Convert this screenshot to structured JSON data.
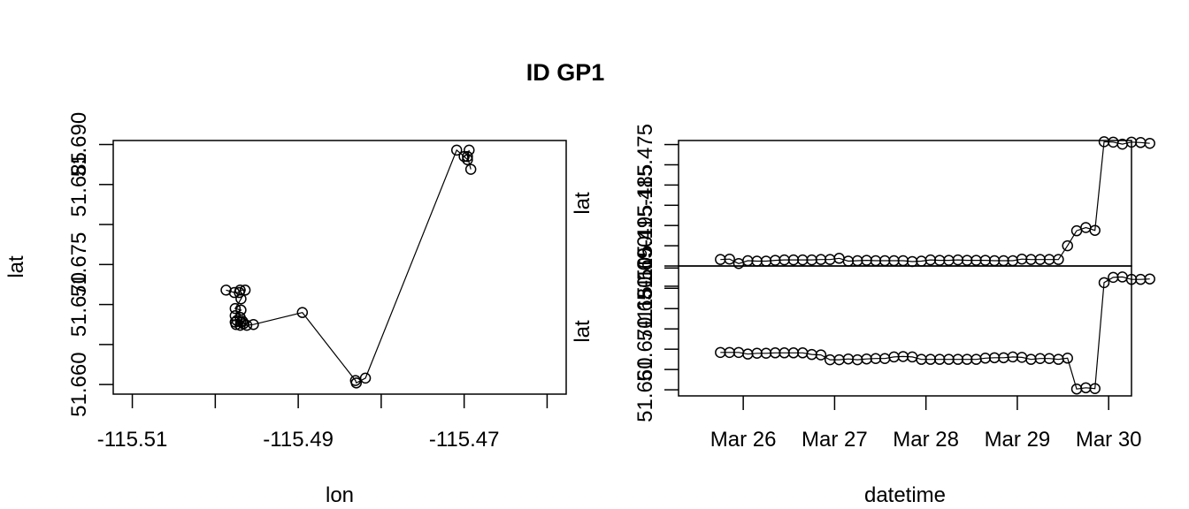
{
  "title": "ID GP1",
  "chart_data": [
    {
      "type": "line",
      "xlabel": "lon",
      "ylabel": "lat",
      "xlim": [
        -115.5123,
        -115.4577
      ],
      "ylim": [
        51.6588,
        51.6905
      ],
      "x_ticks": [
        {
          "value": -115.51,
          "label": "-115.51"
        },
        {
          "value": -115.5,
          "label": ""
        },
        {
          "value": -115.49,
          "label": "-115.49"
        },
        {
          "value": -115.48,
          "label": ""
        },
        {
          "value": -115.47,
          "label": "-115.47"
        },
        {
          "value": -115.46,
          "label": ""
        }
      ],
      "y_ticks": [
        {
          "value": 51.66,
          "label": "51.660"
        },
        {
          "value": 51.665,
          "label": ""
        },
        {
          "value": 51.67,
          "label": "51.670"
        },
        {
          "value": 51.675,
          "label": "51.675"
        },
        {
          "value": 51.68,
          "label": ""
        },
        {
          "value": 51.685,
          "label": "51.685"
        },
        {
          "value": 51.69,
          "label": "51.690"
        }
      ],
      "points": [
        [
          -115.4987,
          51.6718
        ],
        [
          -115.4977,
          51.6715
        ],
        [
          -115.4971,
          51.6715
        ],
        [
          -115.497,
          51.6718
        ],
        [
          -115.4964,
          51.6718
        ],
        [
          -115.4969,
          51.6707
        ],
        [
          -115.4976,
          51.6695
        ],
        [
          -115.4969,
          51.6693
        ],
        [
          -115.4976,
          51.6686
        ],
        [
          -115.497,
          51.6684
        ],
        [
          -115.4974,
          51.668
        ],
        [
          -115.4969,
          51.6678
        ],
        [
          -115.4975,
          51.6675
        ],
        [
          -115.4967,
          51.6679
        ],
        [
          -115.4976,
          51.6678
        ],
        [
          -115.4966,
          51.6676
        ],
        [
          -115.497,
          51.6674
        ],
        [
          -115.4962,
          51.6674
        ],
        [
          -115.4954,
          51.6675
        ],
        [
          -115.4895,
          51.669
        ],
        [
          -115.4831,
          51.6605
        ],
        [
          -115.483,
          51.6602
        ],
        [
          -115.4819,
          51.6608
        ],
        [
          -115.4709,
          51.6893
        ],
        [
          -115.47,
          51.6885
        ],
        [
          -115.4696,
          51.6881
        ],
        [
          -115.4694,
          51.6893
        ],
        [
          -115.4696,
          51.6885
        ],
        [
          -115.4692,
          51.6869
        ]
      ]
    },
    {
      "type": "line",
      "xlabel": "datetime",
      "panels": [
        {
          "ylabel": "lat",
          "ylim": [
            -115.5,
            -115.469
          ],
          "y_ticks": [
            {
              "value": -115.505,
              "label": "-115.505"
            },
            {
              "value": -115.5,
              "label": ""
            },
            {
              "value": -115.495,
              "label": "-115.495"
            },
            {
              "value": -115.49,
              "label": ""
            },
            {
              "value": -115.485,
              "label": "-115.485"
            },
            {
              "value": -115.48,
              "label": ""
            },
            {
              "value": -115.475,
              "label": "-115.475"
            },
            {
              "value": -115.47,
              "label": ""
            }
          ],
          "values": [
            -115.4984,
            -115.4983,
            -115.4994,
            -115.4987,
            -115.4988,
            -115.4988,
            -115.4986,
            -115.4985,
            -115.4985,
            -115.4985,
            -115.4985,
            -115.4984,
            -115.4984,
            -115.4981,
            -115.4988,
            -115.4987,
            -115.4986,
            -115.4987,
            -115.4987,
            -115.4987,
            -115.4987,
            -115.4989,
            -115.4988,
            -115.4985,
            -115.4986,
            -115.4986,
            -115.4985,
            -115.4986,
            -115.4986,
            -115.4986,
            -115.4987,
            -115.4987,
            -115.4987,
            -115.4983,
            -115.4984,
            -115.4984,
            -115.4984,
            -115.4984,
            -115.495,
            -115.4913,
            -115.4905,
            -115.4912,
            -115.4693,
            -115.4694,
            -115.4699,
            -115.4694,
            -115.4695,
            -115.4697
          ]
        },
        {
          "ylabel": "lat",
          "ylim": [
            51.6585,
            51.6905
          ],
          "y_ticks": [
            {
              "value": 51.66,
              "label": "51.660"
            },
            {
              "value": 51.665,
              "label": ""
            },
            {
              "value": 51.67,
              "label": "51.670"
            },
            {
              "value": 51.675,
              "label": ""
            },
            {
              "value": 51.68,
              "label": "51.680"
            },
            {
              "value": 51.685,
              "label": ""
            },
            {
              "value": 51.69,
              "label": "51.690"
            }
          ],
          "values": [
            51.6692,
            51.6692,
            51.6692,
            51.6688,
            51.669,
            51.669,
            51.6691,
            51.6691,
            51.6691,
            51.6691,
            51.6687,
            51.6686,
            51.6674,
            51.6674,
            51.6676,
            51.6674,
            51.6676,
            51.6677,
            51.6677,
            51.6681,
            51.6682,
            51.6681,
            51.6675,
            51.6675,
            51.6675,
            51.6675,
            51.6675,
            51.6675,
            51.6675,
            51.6678,
            51.6679,
            51.6679,
            51.6681,
            51.668,
            51.6675,
            51.6677,
            51.6677,
            51.6675,
            51.6678,
            51.6602,
            51.6605,
            51.6603,
            51.6864,
            51.6877,
            51.6878,
            51.6872,
            51.6872,
            51.6873
          ]
        }
      ],
      "x_range": [
        "2023-03-25T07:00",
        "2023-03-30T06:00"
      ],
      "x_start": "2023-03-25T18:00",
      "x_step_hours": 2.4,
      "x_ticks": [
        {
          "value": "2023-03-26T00:00",
          "label": "Mar 26"
        },
        {
          "value": "2023-03-27T00:00",
          "label": "Mar 27"
        },
        {
          "value": "2023-03-28T00:00",
          "label": "Mar 28"
        },
        {
          "value": "2023-03-29T00:00",
          "label": "Mar 29"
        },
        {
          "value": "2023-03-30T00:00",
          "label": "Mar 30"
        }
      ]
    }
  ]
}
